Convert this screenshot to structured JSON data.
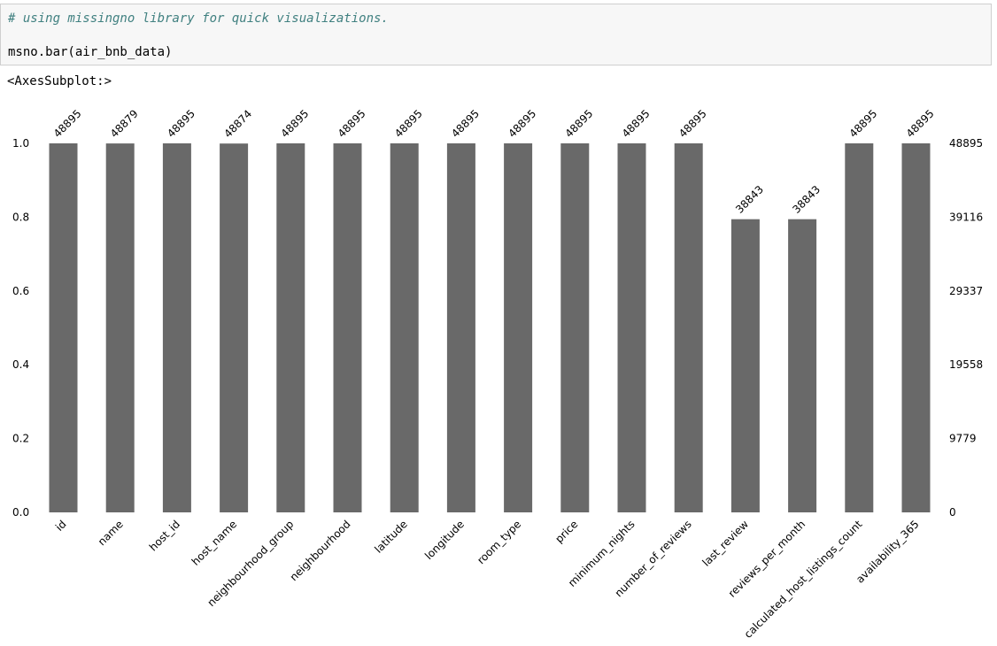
{
  "cell": {
    "comment": "# using missingno library for quick visualizations.",
    "code": "msno.bar(air_bnb_data)"
  },
  "output": {
    "repr": "<AxesSubplot:>"
  },
  "chart_data": {
    "type": "bar",
    "categories": [
      "id",
      "name",
      "host_id",
      "host_name",
      "neighbourhood_group",
      "neighbourhood",
      "latitude",
      "longitude",
      "room_type",
      "price",
      "minimum_nights",
      "number_of_reviews",
      "last_review",
      "reviews_per_month",
      "calculated_host_listings_count",
      "availability_365"
    ],
    "counts": [
      48895,
      48879,
      48895,
      48874,
      48895,
      48895,
      48895,
      48895,
      48895,
      48895,
      48895,
      48895,
      38843,
      38843,
      48895,
      48895
    ],
    "total": 48895,
    "ylim": [
      0,
      1.0
    ],
    "left_ticks": [
      "0.0",
      "0.2",
      "0.4",
      "0.6",
      "0.8",
      "1.0"
    ],
    "right_ticks": [
      "0",
      "9779",
      "19558",
      "29337",
      "39116",
      "48895"
    ],
    "bar_color": "#696969",
    "grid": false
  }
}
